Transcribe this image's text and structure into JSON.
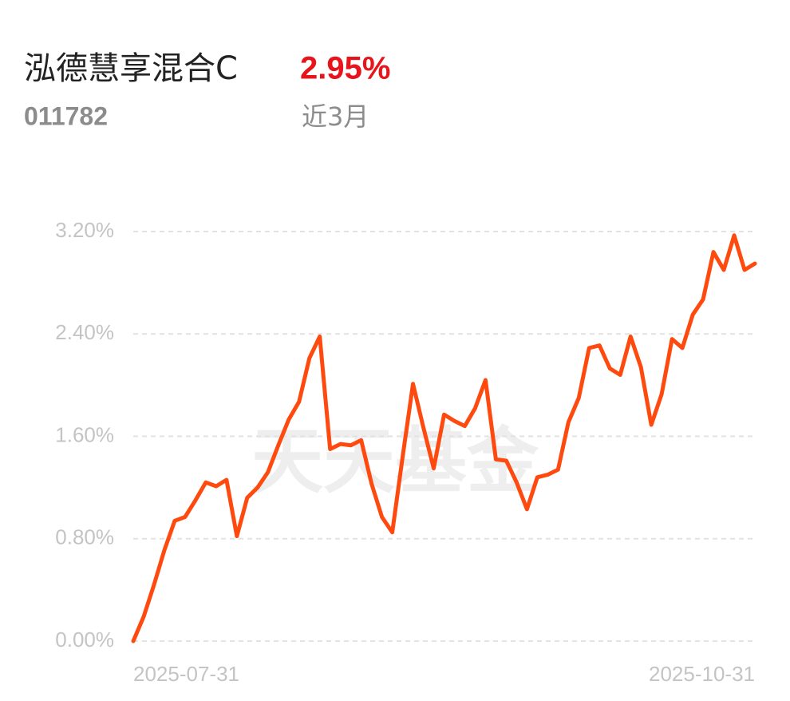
{
  "chart_data": {
    "type": "line",
    "title": "泓德慧享混合C",
    "value_label": "2.95%",
    "subtitle": "011782",
    "period": "近3月",
    "watermark": "天天基金",
    "categories": [
      "2025-07-31",
      null,
      null,
      null,
      null,
      null,
      null,
      null,
      null,
      null,
      null,
      null,
      null,
      null,
      null,
      null,
      null,
      null,
      null,
      null,
      null,
      null,
      null,
      null,
      null,
      null,
      null,
      null,
      null,
      null,
      null,
      null,
      null,
      null,
      null,
      null,
      null,
      null,
      null,
      null,
      null,
      null,
      null,
      null,
      null,
      null,
      null,
      null,
      null,
      null,
      null,
      null,
      null,
      null,
      null,
      null,
      null,
      null,
      null,
      null,
      "2025-10-31"
    ],
    "series": [
      {
        "name": "泓德慧享混合C",
        "color": "#ff4a0f",
        "values": [
          0,
          0.19,
          0.44,
          0.71,
          0.94,
          0.97,
          1.1,
          1.24,
          1.21,
          1.26,
          0.82,
          1.12,
          1.2,
          1.32,
          1.53,
          1.73,
          1.87,
          2.21,
          2.38,
          1.5,
          1.54,
          1.53,
          1.57,
          1.23,
          0.97,
          0.85,
          1.44,
          2.01,
          1.67,
          1.35,
          1.77,
          1.72,
          1.68,
          1.82,
          2.04,
          1.42,
          1.41,
          1.24,
          1.03,
          1.28,
          1.3,
          1.34,
          1.71,
          1.9,
          2.29,
          2.31,
          2.13,
          2.08,
          2.38,
          2.14,
          1.69,
          1.93,
          2.36,
          2.29,
          2.55,
          2.67,
          3.04,
          2.9,
          3.17,
          2.9,
          2.95
        ]
      }
    ],
    "ylim": [
      0,
      3.2
    ],
    "yticks": [
      {
        "value": 0,
        "label": "0.00%"
      },
      {
        "value": 0.8,
        "label": "0.80%"
      },
      {
        "value": 1.6,
        "label": "1.60%"
      },
      {
        "value": 2.4,
        "label": "2.40%"
      },
      {
        "value": 3.2,
        "label": "3.20%"
      }
    ],
    "grid": true
  }
}
